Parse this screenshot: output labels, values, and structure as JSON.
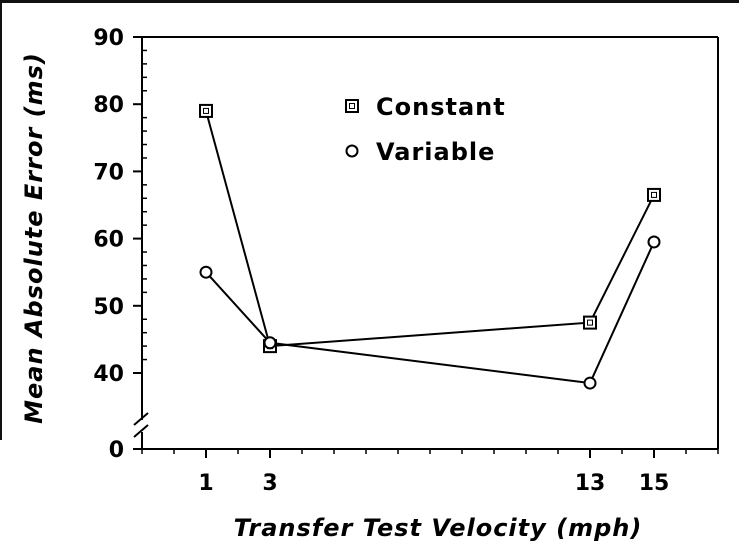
{
  "chart_data": {
    "type": "line",
    "xlabel": "Transfer Test Velocity (mph)",
    "ylabel": "Mean Absolute Error (ms)",
    "x_ticks": [
      "1",
      "3",
      "13",
      "15"
    ],
    "y_ticks": [
      "0",
      "40",
      "50",
      "60",
      "70",
      "80",
      "90"
    ],
    "xlim": [
      -1,
      17
    ],
    "ylim_upper": [
      40,
      90
    ],
    "axis_break": "between 0 and 40 on y-axis",
    "legend_position": "top-center",
    "series": [
      {
        "name": "Constant",
        "marker": "square",
        "x": [
          1,
          3,
          13,
          15
        ],
        "y": [
          79,
          44,
          47.5,
          66.5
        ]
      },
      {
        "name": "Variable",
        "marker": "circle",
        "x": [
          1,
          3,
          13,
          15
        ],
        "y": [
          55,
          44.5,
          38.5,
          59.5
        ]
      }
    ],
    "colors": {
      "line": "#000000",
      "background": "#ffffff"
    }
  }
}
